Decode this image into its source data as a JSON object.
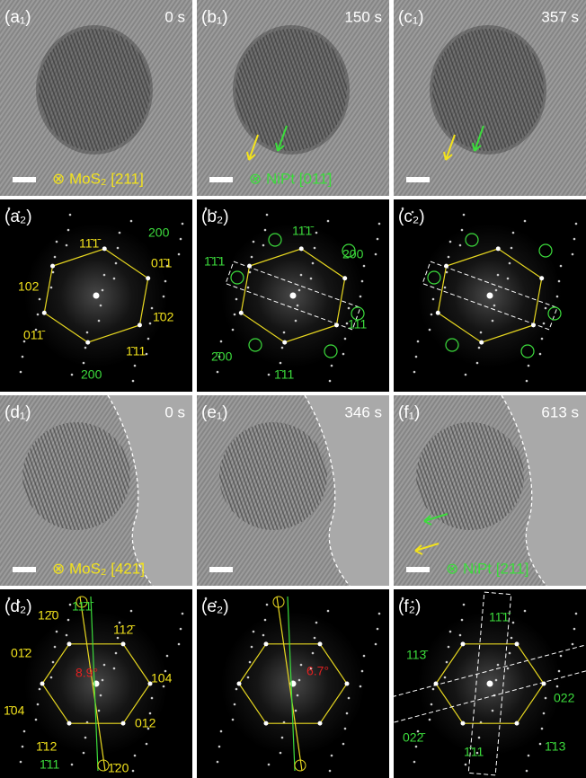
{
  "panels": [
    {
      "label": "(a₁)",
      "time": "0 s",
      "caption": "⊗ MoS₂ [211]",
      "caption_color": "#f2e21c"
    },
    {
      "label": "(b₁)",
      "time": "150 s",
      "caption": "⊗ NiPt [011̄]",
      "caption_color": "#3cdc3c"
    },
    {
      "label": "(c₁)",
      "time": "357 s"
    },
    {
      "label": "(a₂)",
      "indices": [
        {
          "text": "11̄1̄",
          "color": "#f2e21c"
        },
        {
          "text": "200",
          "color": "#3cdc3c"
        },
        {
          "text": "01̄1",
          "color": "#f2e21c"
        },
        {
          "text": "102",
          "color": "#f2e21c"
        },
        {
          "text": "1̄02",
          "color": "#f2e21c"
        },
        {
          "text": "011̄",
          "color": "#f2e21c"
        },
        {
          "text": "1̄11",
          "color": "#f2e21c"
        },
        {
          "text": "200",
          "color": "#3cdc3c"
        }
      ]
    },
    {
      "label": "(b₂)",
      "indices": [
        {
          "text": "11̄1̄",
          "color": "#3cdc3c"
        },
        {
          "text": "1̄1̄1",
          "color": "#3cdc3c"
        },
        {
          "text": "200",
          "color": "#3cdc3c"
        },
        {
          "text": "111",
          "color": "#3cdc3c"
        },
        {
          "text": "2̄00",
          "color": "#3cdc3c"
        },
        {
          "text": "1̄11",
          "color": "#3cdc3c"
        }
      ]
    },
    {
      "label": "(c₂)"
    },
    {
      "label": "(d₁)",
      "time": "0 s",
      "caption": "⊗ MoS₂ [421̄]",
      "caption_color": "#f2e21c"
    },
    {
      "label": "(e₁)",
      "time": "346 s"
    },
    {
      "label": "(f₁)",
      "time": "613 s",
      "caption": "⊗ NiPt  [211]",
      "caption_color": "#3cdc3c"
    },
    {
      "label": "(d₂)",
      "indices": [
        {
          "text": "12̄0",
          "color": "#f2e21c"
        },
        {
          "text": "11̄1̄",
          "color": "#3cdc3c"
        },
        {
          "text": "112̄",
          "color": "#f2e21c"
        },
        {
          "text": "01̄2",
          "color": "#f2e21c"
        },
        {
          "text": "8.9°",
          "color": "#e02020"
        },
        {
          "text": "104",
          "color": "#f2e21c"
        },
        {
          "text": "1̄04",
          "color": "#f2e21c"
        },
        {
          "text": "012",
          "color": "#f2e21c"
        },
        {
          "text": "1̄12",
          "color": "#f2e21c"
        },
        {
          "text": "1̄11",
          "color": "#3cdc3c"
        },
        {
          "text": "1̄20",
          "color": "#f2e21c"
        }
      ]
    },
    {
      "label": "(e₂)",
      "indices": [
        {
          "text": "6.7°",
          "color": "#e02020"
        }
      ]
    },
    {
      "label": "(f₂)",
      "indices": [
        {
          "text": "11̄1̄",
          "color": "#3cdc3c"
        },
        {
          "text": "113̄",
          "color": "#3cdc3c"
        },
        {
          "text": "022",
          "color": "#3cdc3c"
        },
        {
          "text": "022̄",
          "color": "#3cdc3c"
        },
        {
          "text": "1̄11",
          "color": "#3cdc3c"
        },
        {
          "text": "1̄13",
          "color": "#3cdc3c"
        }
      ]
    }
  ]
}
